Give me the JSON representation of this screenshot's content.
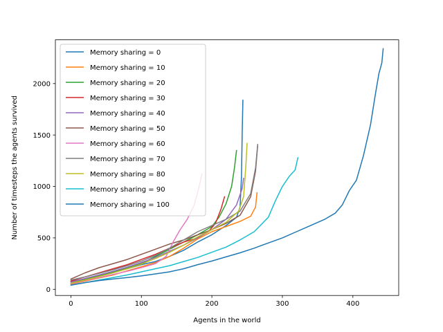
{
  "chart_data": {
    "type": "line",
    "xlabel": "Agents in the world",
    "ylabel": "Number of timesteps the agents survived",
    "xlim": [
      -22,
      465
    ],
    "ylim": [
      -60,
      2425
    ],
    "xticks": [
      0,
      100,
      200,
      300,
      400
    ],
    "yticks": [
      0,
      500,
      1000,
      1500,
      2000
    ],
    "grid": false,
    "legend_position": "top-left",
    "series": [
      {
        "name": "Memory sharing = 0",
        "color": "#1f77b4",
        "points": [
          [
            0,
            75
          ],
          [
            20,
            100
          ],
          [
            40,
            135
          ],
          [
            60,
            165
          ],
          [
            80,
            200
          ],
          [
            100,
            240
          ],
          [
            120,
            270
          ],
          [
            140,
            320
          ],
          [
            160,
            380
          ],
          [
            180,
            460
          ],
          [
            200,
            530
          ],
          [
            220,
            620
          ],
          [
            235,
            700
          ],
          [
            240,
            800
          ],
          [
            242,
            1100
          ],
          [
            243,
            1520
          ],
          [
            244,
            1840
          ]
        ]
      },
      {
        "name": "Memory sharing = 10",
        "color": "#ff7f0e",
        "points": [
          [
            0,
            50
          ],
          [
            20,
            80
          ],
          [
            40,
            110
          ],
          [
            60,
            140
          ],
          [
            80,
            180
          ],
          [
            100,
            220
          ],
          [
            120,
            260
          ],
          [
            140,
            320
          ],
          [
            160,
            400
          ],
          [
            180,
            490
          ],
          [
            200,
            560
          ],
          [
            220,
            610
          ],
          [
            240,
            660
          ],
          [
            255,
            710
          ],
          [
            262,
            800
          ],
          [
            264,
            940
          ]
        ]
      },
      {
        "name": "Memory sharing = 20",
        "color": "#2ca02c",
        "points": [
          [
            0,
            60
          ],
          [
            20,
            100
          ],
          [
            40,
            130
          ],
          [
            60,
            170
          ],
          [
            80,
            210
          ],
          [
            100,
            250
          ],
          [
            120,
            320
          ],
          [
            140,
            390
          ],
          [
            160,
            460
          ],
          [
            180,
            530
          ],
          [
            200,
            610
          ],
          [
            210,
            700
          ],
          [
            220,
            830
          ],
          [
            228,
            1000
          ],
          [
            232,
            1180
          ],
          [
            235,
            1350
          ]
        ]
      },
      {
        "name": "Memory sharing = 30",
        "color": "#d62728",
        "points": [
          [
            0,
            80
          ],
          [
            20,
            120
          ],
          [
            40,
            160
          ],
          [
            60,
            200
          ],
          [
            80,
            240
          ],
          [
            100,
            290
          ],
          [
            120,
            340
          ],
          [
            140,
            400
          ],
          [
            160,
            460
          ],
          [
            180,
            500
          ],
          [
            195,
            560
          ],
          [
            205,
            640
          ],
          [
            213,
            780
          ],
          [
            218,
            900
          ]
        ]
      },
      {
        "name": "Memory sharing = 40",
        "color": "#9467bd",
        "points": [
          [
            0,
            70
          ],
          [
            20,
            105
          ],
          [
            40,
            140
          ],
          [
            60,
            175
          ],
          [
            80,
            215
          ],
          [
            100,
            260
          ],
          [
            120,
            310
          ],
          [
            140,
            370
          ],
          [
            160,
            430
          ],
          [
            180,
            500
          ],
          [
            200,
            580
          ],
          [
            220,
            680
          ],
          [
            235,
            820
          ],
          [
            243,
            980
          ],
          [
            245,
            1080
          ]
        ]
      },
      {
        "name": "Memory sharing = 50",
        "color": "#8c564b",
        "points": [
          [
            0,
            100
          ],
          [
            20,
            160
          ],
          [
            40,
            210
          ],
          [
            60,
            250
          ],
          [
            80,
            290
          ],
          [
            100,
            340
          ],
          [
            120,
            390
          ],
          [
            140,
            440
          ],
          [
            160,
            480
          ],
          [
            180,
            530
          ],
          [
            200,
            580
          ],
          [
            220,
            640
          ],
          [
            240,
            720
          ],
          [
            255,
            900
          ],
          [
            262,
            1150
          ],
          [
            265,
            1400
          ]
        ]
      },
      {
        "name": "Memory sharing = 60",
        "color": "#e377c2",
        "points": [
          [
            0,
            55
          ],
          [
            20,
            85
          ],
          [
            40,
            115
          ],
          [
            60,
            145
          ],
          [
            80,
            175
          ],
          [
            100,
            210
          ],
          [
            120,
            250
          ],
          [
            135,
            320
          ],
          [
            145,
            460
          ],
          [
            155,
            580
          ],
          [
            165,
            680
          ],
          [
            175,
            820
          ],
          [
            182,
            1000
          ],
          [
            186,
            1120
          ]
        ]
      },
      {
        "name": "Memory sharing = 70",
        "color": "#7f7f7f",
        "points": [
          [
            0,
            90
          ],
          [
            20,
            120
          ],
          [
            40,
            155
          ],
          [
            60,
            190
          ],
          [
            80,
            230
          ],
          [
            100,
            275
          ],
          [
            120,
            330
          ],
          [
            140,
            400
          ],
          [
            160,
            480
          ],
          [
            180,
            560
          ],
          [
            200,
            620
          ],
          [
            220,
            680
          ],
          [
            240,
            760
          ],
          [
            255,
            930
          ],
          [
            262,
            1180
          ],
          [
            265,
            1410
          ]
        ]
      },
      {
        "name": "Memory sharing = 80",
        "color": "#bcbd22",
        "points": [
          [
            0,
            60
          ],
          [
            20,
            90
          ],
          [
            40,
            125
          ],
          [
            60,
            160
          ],
          [
            80,
            200
          ],
          [
            100,
            245
          ],
          [
            120,
            300
          ],
          [
            140,
            360
          ],
          [
            160,
            430
          ],
          [
            180,
            510
          ],
          [
            200,
            580
          ],
          [
            220,
            650
          ],
          [
            238,
            760
          ],
          [
            245,
            900
          ],
          [
            248,
            1180
          ],
          [
            250,
            1420
          ]
        ]
      },
      {
        "name": "Memory sharing = 90",
        "color": "#17becf",
        "points": [
          [
            0,
            40
          ],
          [
            20,
            65
          ],
          [
            40,
            90
          ],
          [
            60,
            115
          ],
          [
            80,
            140
          ],
          [
            100,
            170
          ],
          [
            120,
            200
          ],
          [
            140,
            230
          ],
          [
            160,
            270
          ],
          [
            180,
            310
          ],
          [
            200,
            360
          ],
          [
            220,
            410
          ],
          [
            240,
            480
          ],
          [
            260,
            560
          ],
          [
            280,
            700
          ],
          [
            290,
            860
          ],
          [
            300,
            1000
          ],
          [
            310,
            1100
          ],
          [
            318,
            1160
          ],
          [
            322,
            1280
          ]
        ]
      },
      {
        "name": "Memory sharing = 100",
        "color": "#1f77b4",
        "points": [
          [
            0,
            40
          ],
          [
            20,
            65
          ],
          [
            40,
            85
          ],
          [
            60,
            100
          ],
          [
            80,
            115
          ],
          [
            100,
            130
          ],
          [
            120,
            150
          ],
          [
            140,
            170
          ],
          [
            160,
            200
          ],
          [
            180,
            240
          ],
          [
            200,
            275
          ],
          [
            220,
            315
          ],
          [
            240,
            355
          ],
          [
            260,
            400
          ],
          [
            280,
            450
          ],
          [
            300,
            500
          ],
          [
            320,
            560
          ],
          [
            340,
            620
          ],
          [
            360,
            680
          ],
          [
            375,
            740
          ],
          [
            385,
            820
          ],
          [
            395,
            960
          ],
          [
            405,
            1060
          ],
          [
            415,
            1300
          ],
          [
            425,
            1600
          ],
          [
            432,
            1900
          ],
          [
            437,
            2100
          ],
          [
            441,
            2200
          ],
          [
            443,
            2340
          ]
        ]
      }
    ]
  }
}
